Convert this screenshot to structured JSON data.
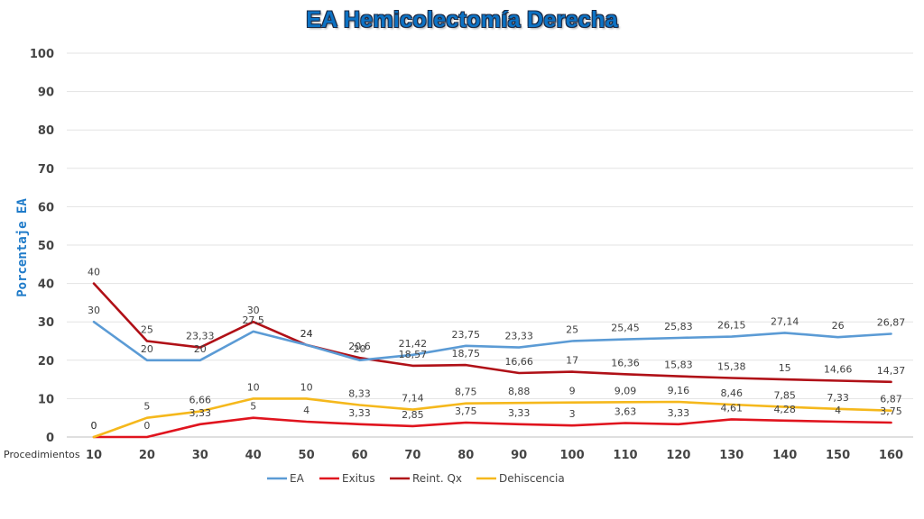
{
  "chart_data": {
    "type": "line",
    "title": "EA Hemicolectomía Derecha",
    "ylabel": "Porcentaje EA",
    "xlabel": "Procedimientos",
    "x": [
      10,
      20,
      30,
      40,
      50,
      60,
      70,
      80,
      90,
      100,
      110,
      120,
      130,
      140,
      150,
      160
    ],
    "ylim": [
      0,
      100
    ],
    "yticks": [
      0,
      10,
      20,
      30,
      40,
      50,
      60,
      70,
      80,
      90,
      100
    ],
    "grid": true,
    "legend_position": "bottom",
    "series": [
      {
        "name": "EA",
        "color": "#5b9bd5",
        "values": [
          30,
          20,
          20,
          27.5,
          24,
          20,
          21.42,
          23.75,
          23.33,
          25,
          25.45,
          25.83,
          26.15,
          27.14,
          26,
          26.87
        ],
        "labels": [
          "30",
          "20",
          "20",
          "27,5",
          "24",
          "20",
          "21,42",
          "23,75",
          "23,33",
          "25",
          "25,45",
          "25,83",
          "26,15",
          "27,14",
          "26",
          "26,87"
        ]
      },
      {
        "name": "Exitus",
        "color": "#e0141e",
        "values": [
          0,
          0,
          3.33,
          5,
          4,
          3.33,
          2.85,
          3.75,
          3.33,
          3,
          3.63,
          3.33,
          4.61,
          4.28,
          4,
          3.75
        ],
        "labels": [
          "0",
          "0",
          "3,33",
          "5",
          "4",
          "3,33",
          "2,85",
          "3,75",
          "3,33",
          "3",
          "3,63",
          "3,33",
          "4,61",
          "4,28",
          "4",
          "3,75"
        ]
      },
      {
        "name": "Reint. Qx",
        "color": "#b01017",
        "values": [
          40,
          25,
          23.33,
          30,
          24,
          20.6,
          18.57,
          18.75,
          16.66,
          17,
          16.36,
          15.83,
          15.38,
          15,
          14.66,
          14.37
        ],
        "labels": [
          "40",
          "25",
          "23,33",
          "30",
          "24",
          "20,6",
          "18,57",
          "18,75",
          "16,66",
          "17",
          "16,36",
          "15,83",
          "15,38",
          "15",
          "14,66",
          "14,37"
        ]
      },
      {
        "name": "Dehiscencia",
        "color": "#f5b81c",
        "values": [
          0,
          5,
          6.66,
          10,
          10,
          8.33,
          7.14,
          8.75,
          8.88,
          9,
          9.09,
          9.16,
          8.46,
          7.85,
          7.33,
          6.87
        ],
        "labels": [
          "0",
          "5",
          "6,66",
          "10",
          "10",
          "8,33",
          "7,14",
          "8,75",
          "8,88",
          "9",
          "9,09",
          "9,16",
          "8,46",
          "7,85",
          "7,33",
          "6,87"
        ]
      }
    ]
  }
}
